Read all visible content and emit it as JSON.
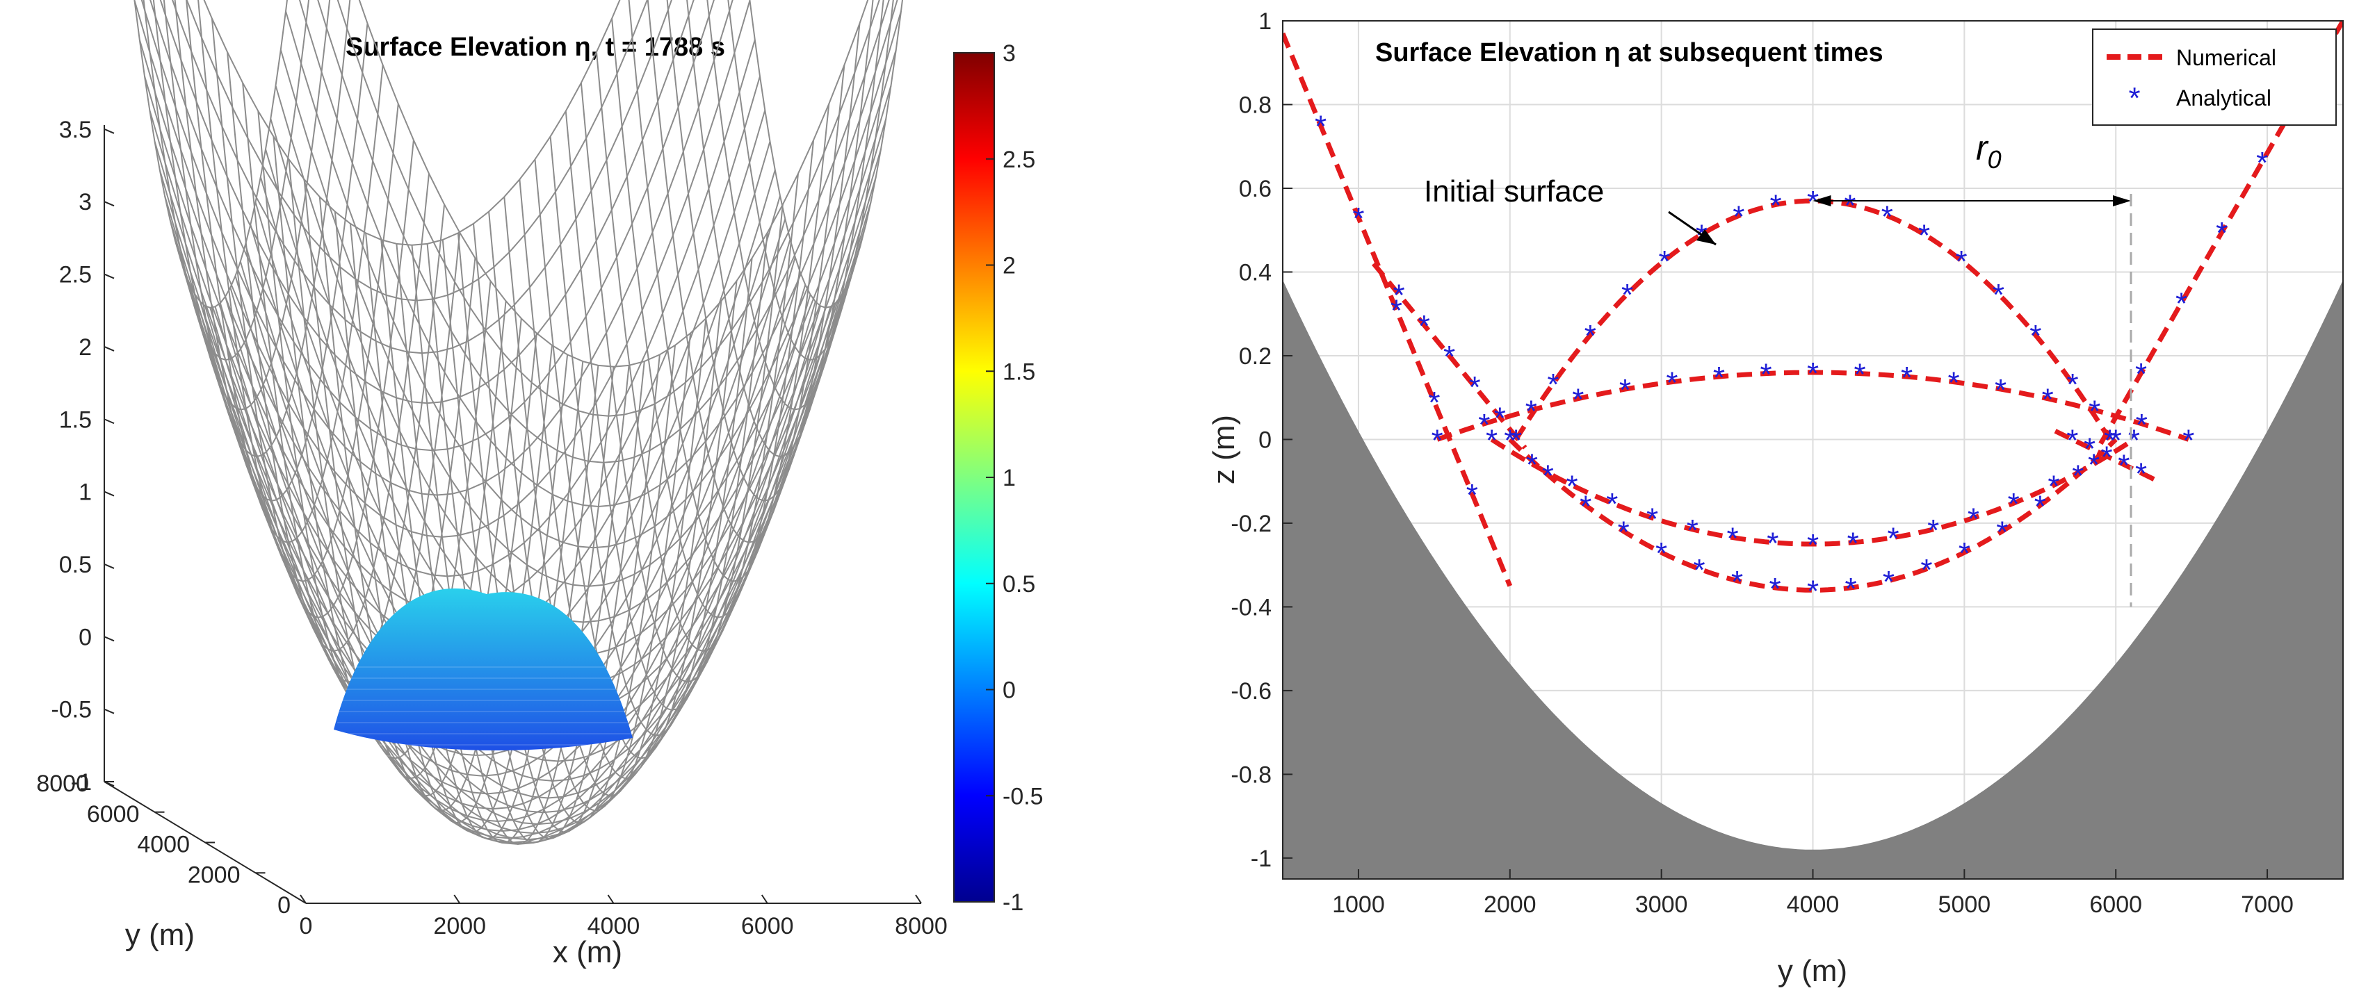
{
  "chart_data": [
    {
      "type": "surface3d",
      "title": "Surface Elevation η, t = 1788 s",
      "xlabel": "x (m)",
      "ylabel": "y (m)",
      "xlim": [
        0,
        8000
      ],
      "ylim": [
        0,
        8000
      ],
      "zlim": [
        -1,
        3.75
      ],
      "x_ticks": [
        "0",
        "2000",
        "4000",
        "6000",
        "8000"
      ],
      "y_ticks": [
        "0",
        "2000",
        "4000",
        "6000",
        "8000"
      ],
      "z_ticks": [
        "-1",
        "-0.5",
        "0",
        "0.5",
        "1",
        "1.5",
        "2",
        "2.5",
        "3",
        "3.5"
      ],
      "colorbar": {
        "range": [
          -1,
          3
        ],
        "ticks": [
          "-1",
          "-0.5",
          "0",
          "0.5",
          "1",
          "1.5",
          "2",
          "2.5",
          "3"
        ],
        "colormap": "jet"
      },
      "mesh_color": "#8c8c8c",
      "water_colors": [
        "#1e50e6",
        "#2ad0ec"
      ]
    },
    {
      "type": "line",
      "title": "Surface Elevation η at subsequent times",
      "xlabel": "y (m)",
      "ylabel": "z (m)",
      "xlim": [
        500,
        7500
      ],
      "ylim": [
        -1.05,
        1
      ],
      "x_ticks": [
        1000,
        2000,
        3000,
        4000,
        5000,
        6000,
        7000
      ],
      "y_ticks": [
        -1,
        -0.8,
        -0.6,
        -0.4,
        -0.2,
        0,
        0.2,
        0.4,
        0.6,
        0.8,
        1
      ],
      "grid": true,
      "bathymetry": {
        "center": 4000,
        "depth_at_center": -0.98,
        "half_width_at_zero": 2970,
        "fill": "#808080"
      },
      "series": [
        {
          "name": "Numerical",
          "style": "dashed-line",
          "color": "#e41a1c"
        },
        {
          "name": "Analytical",
          "style": "star-markers",
          "color": "#1f1fd6"
        }
      ],
      "surfaces": [
        {
          "time_index": 0,
          "center_z": 0.57,
          "x_range": [
            2040,
            5960
          ]
        },
        {
          "time_index": 1,
          "center_z": 0.16,
          "x_range": [
            1520,
            6480
          ]
        },
        {
          "time_index": 2,
          "center_z": -0.25,
          "x_range": [
            1880,
            6120
          ]
        },
        {
          "time_index": 3,
          "center_z": -0.36,
          "x_range": [
            2000,
            6000
          ]
        }
      ],
      "shoreline_lines": [
        {
          "x": [
            500,
            2000
          ],
          "z": [
            0.97,
            -0.35
          ]
        },
        {
          "x": [
            1100,
            2100
          ],
          "z": [
            0.42,
            -0.02
          ]
        },
        {
          "x": [
            5900,
            7500
          ],
          "z": [
            -0.01,
            1.0
          ]
        },
        {
          "x": [
            5600,
            6280
          ],
          "z": [
            0.02,
            -0.1
          ]
        }
      ],
      "annotations": {
        "initial_surface": "Initial surface",
        "r0_symbol": "r",
        "r0_subscript": "0",
        "r0_from_x": 4000,
        "r0_to_x": 6100,
        "r0_z": 0.57
      },
      "legend_position": "top-right"
    }
  ]
}
